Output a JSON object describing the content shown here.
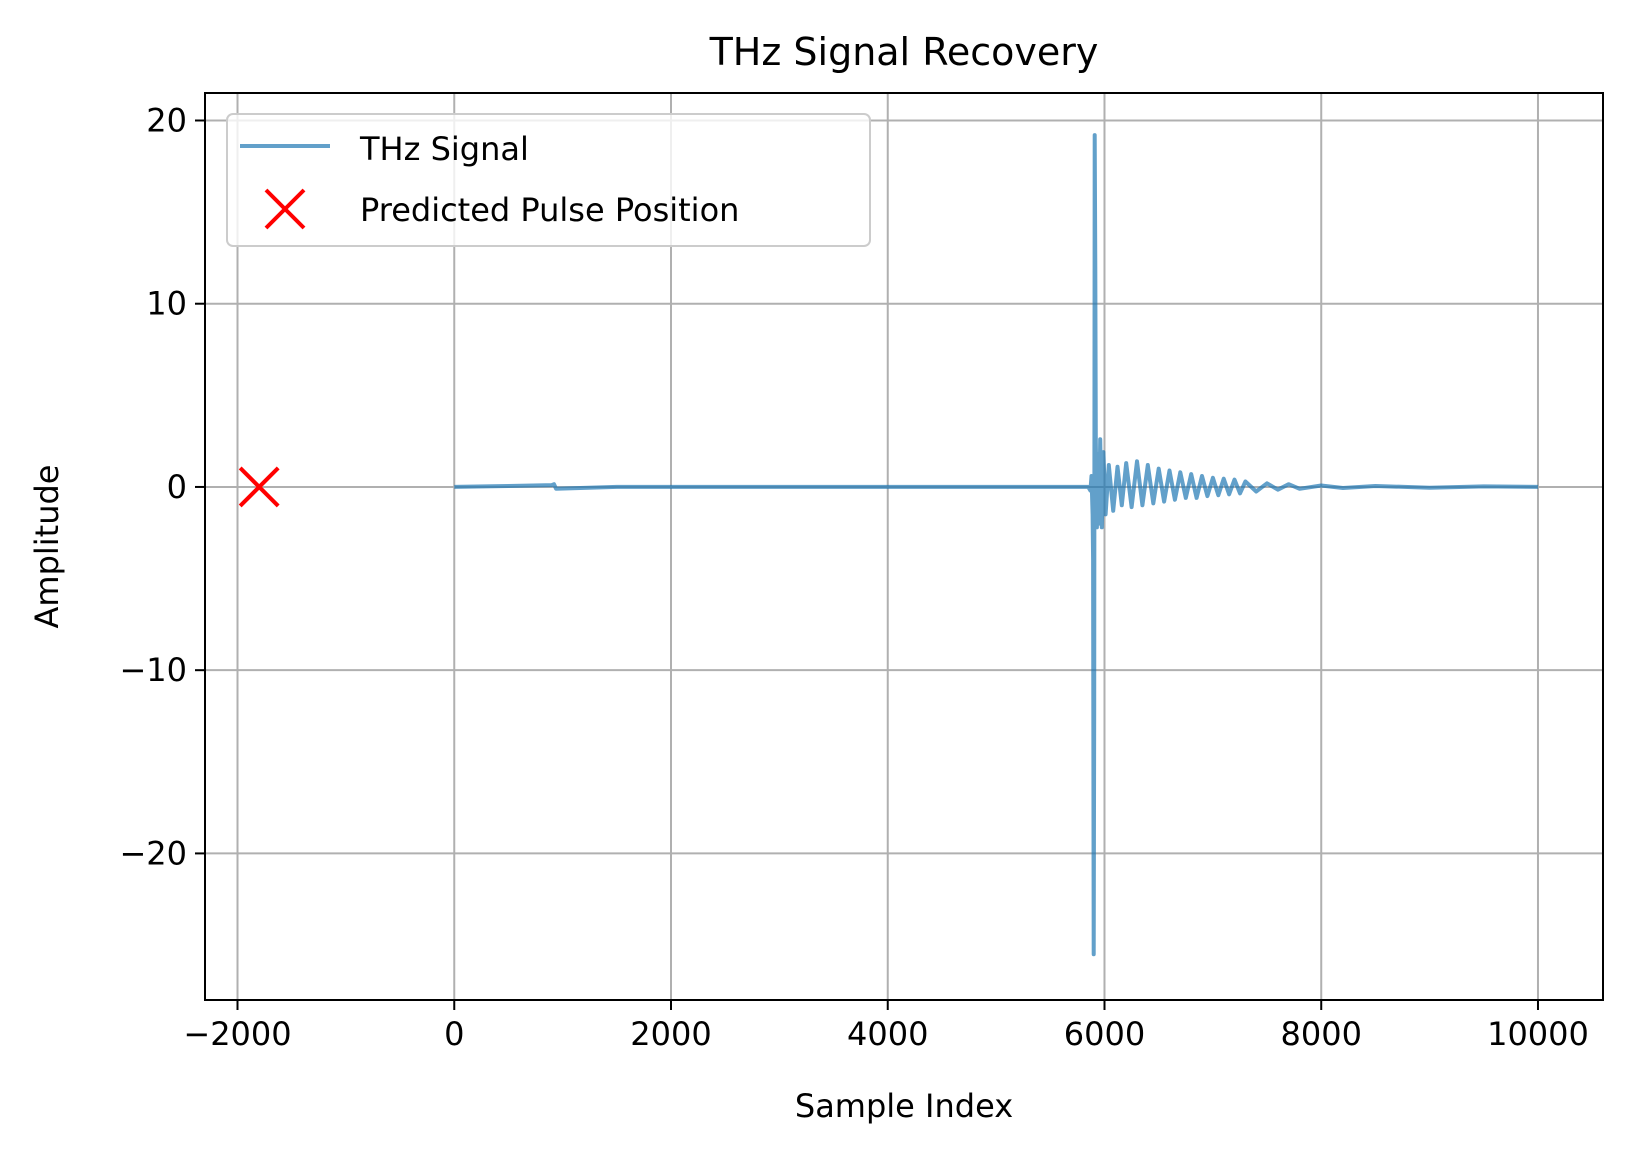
{
  "chart_data": {
    "type": "line",
    "title": "THz Signal Recovery",
    "xlabel": "Sample Index",
    "ylabel": "Amplitude",
    "xlim": [
      -2300,
      10600
    ],
    "ylim": [
      -28,
      21.5
    ],
    "xticks": [
      -2000,
      0,
      2000,
      4000,
      6000,
      8000,
      10000
    ],
    "xtick_labels": [
      "−2000",
      "0",
      "2000",
      "4000",
      "6000",
      "8000",
      "10000"
    ],
    "yticks": [
      20,
      10,
      0,
      -10,
      -20
    ],
    "ytick_labels": [
      "20",
      "10",
      "0",
      "−10",
      "−20"
    ],
    "grid": true,
    "legend_position": "upper-left",
    "series": [
      {
        "name": "THz Signal",
        "kind": "line",
        "color": "#1f77b4",
        "x": [
          0,
          500,
          900,
          920,
          940,
          1500,
          3000,
          4500,
          5850,
          5870,
          5880,
          5890,
          5895,
          5900,
          5905,
          5910,
          5915,
          5920,
          5930,
          5940,
          5950,
          5960,
          5975,
          5990,
          6010,
          6040,
          6080,
          6120,
          6160,
          6200,
          6250,
          6300,
          6350,
          6400,
          6450,
          6500,
          6550,
          6600,
          6650,
          6700,
          6750,
          6800,
          6850,
          6900,
          6950,
          7000,
          7050,
          7100,
          7150,
          7200,
          7250,
          7300,
          7400,
          7500,
          7600,
          7700,
          7800,
          8000,
          8200,
          8500,
          9000,
          9500,
          10000
        ],
        "y": [
          0,
          0.05,
          0.1,
          0.15,
          -0.1,
          0,
          0,
          0,
          0,
          -0.2,
          0.6,
          -1.5,
          -4,
          -25.5,
          -12,
          19.2,
          12,
          2.5,
          -2.2,
          1.8,
          -2.0,
          2.6,
          -2.2,
          1.9,
          -1.5,
          1.2,
          -1.3,
          1.1,
          -1.0,
          1.3,
          -1.1,
          1.4,
          -1.0,
          1.2,
          -0.9,
          1.0,
          -0.8,
          0.9,
          -0.7,
          0.8,
          -0.6,
          0.7,
          -0.6,
          0.6,
          -0.5,
          0.5,
          -0.45,
          0.45,
          -0.4,
          0.4,
          -0.35,
          0.3,
          -0.25,
          0.2,
          -0.15,
          0.15,
          -0.1,
          0.08,
          -0.06,
          0.05,
          -0.04,
          0.03,
          0
        ]
      },
      {
        "name": "Predicted Pulse Position",
        "kind": "marker",
        "marker": "x",
        "color": "#ff0000",
        "x": [
          -1800
        ],
        "y": [
          0
        ]
      }
    ]
  }
}
